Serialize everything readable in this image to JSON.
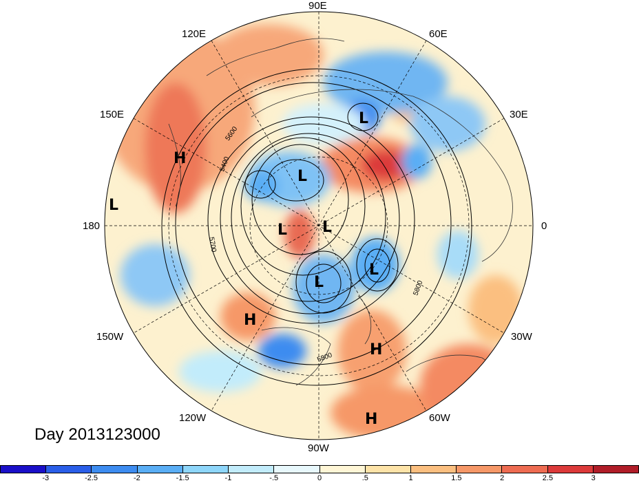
{
  "map": {
    "projection": "north-polar-stereographic",
    "lon_labels": {
      "e90": "90E",
      "e60": "60E",
      "e30": "30E",
      "zero": "0",
      "w30": "30W",
      "w60": "60W",
      "w90": "90W",
      "w120": "120W",
      "w150": "150W",
      "d180": "180",
      "e150": "150E",
      "e120": "120E"
    },
    "contour_labels": {
      "c5600": "5600",
      "c5400": "5400",
      "c5700": "5700",
      "c5800a": "5800",
      "c5800b": "5800"
    },
    "markers": {
      "L1": "L",
      "L2": "L",
      "L3": "L",
      "L4": "L",
      "L5": "L",
      "L6": "L",
      "L7": "L",
      "H1": "H",
      "H2": "H",
      "H3": "H",
      "H4": "H"
    },
    "title": "Day 2013123000"
  },
  "colorbar": {
    "colors": [
      "#1a0fc8",
      "#2a5ee8",
      "#3d8cf0",
      "#5aaef5",
      "#8ed6fa",
      "#c2ecfb",
      "#e8f8fc",
      "#fff6d6",
      "#fde3a8",
      "#fbbf80",
      "#f69868",
      "#ee6c52",
      "#dc3a3a",
      "#b01d28"
    ],
    "ticks": [
      "-3",
      "-2.5",
      "-2",
      "-1.5",
      "-1",
      "-.5",
      "0",
      ".5",
      "1",
      "1.5",
      "2",
      "2.5",
      "3"
    ]
  }
}
